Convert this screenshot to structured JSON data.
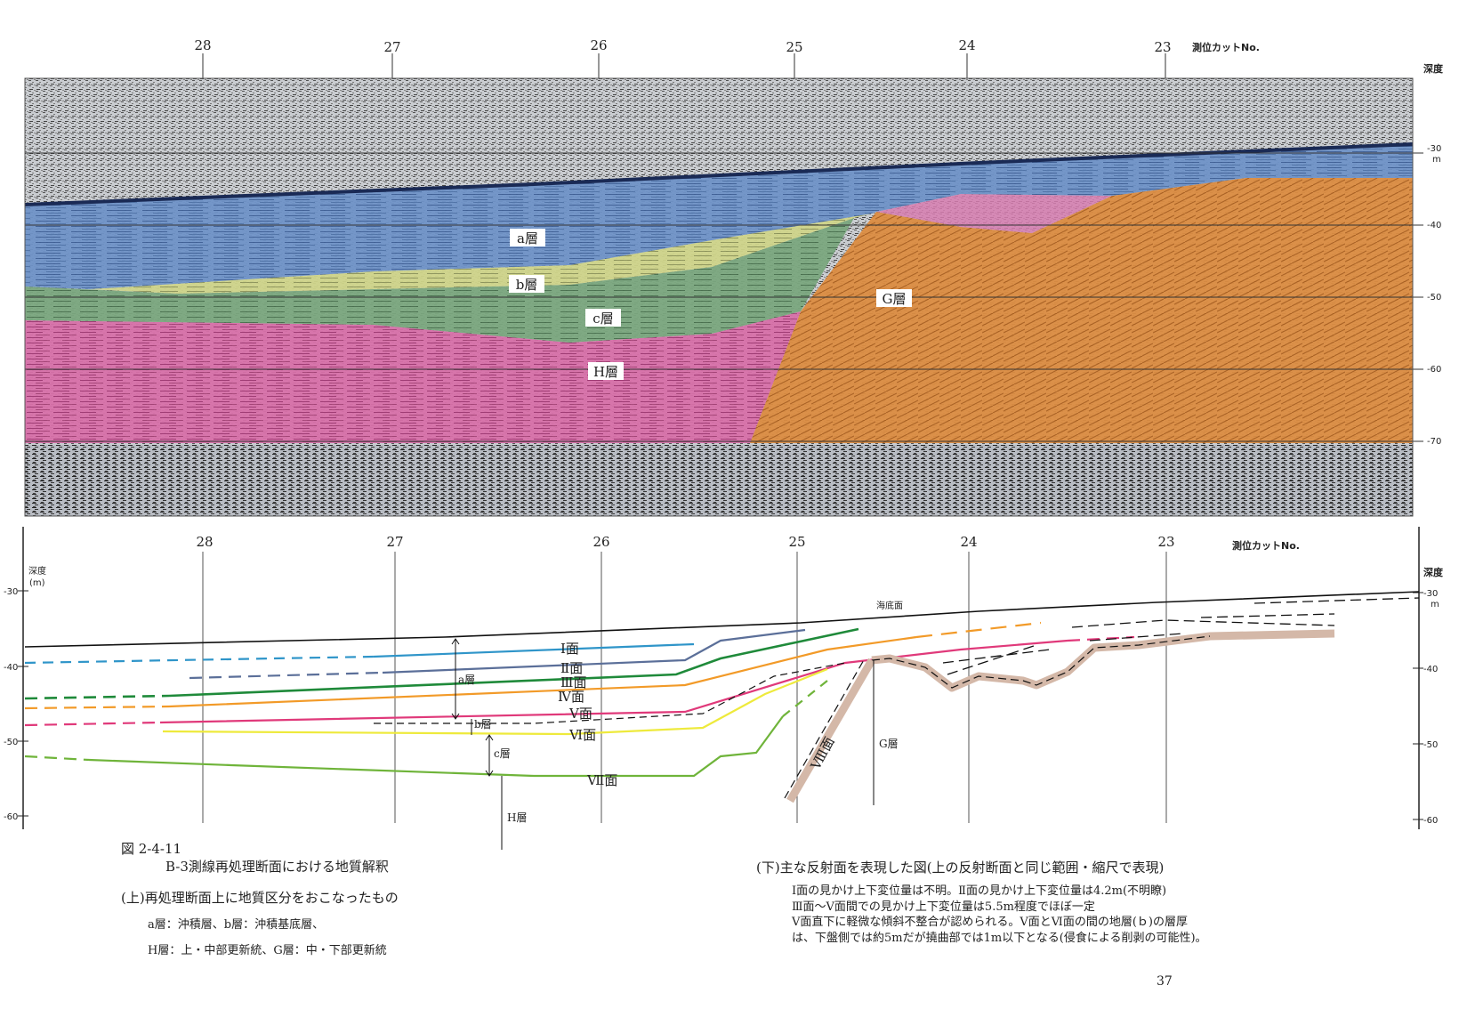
{
  "top_section": {
    "cut_numbers": [
      "28",
      "27",
      "26",
      "25",
      "24",
      "23"
    ],
    "cut_label": "測位カットNo.",
    "depth_label": "深度",
    "depth_ticks": [
      "30",
      "40",
      "50",
      "60",
      "70"
    ],
    "depth_unit": "m",
    "layers": {
      "a": "a層",
      "b": "b層",
      "c": "c層",
      "H": "H層",
      "G": "G層"
    },
    "colors": {
      "a": "#5d86c0",
      "b": "#c8cf7c",
      "c": "#6e9e73",
      "H": "#d6569a",
      "G": "#d9802f",
      "noise": "#9aa0a8"
    }
  },
  "bottom_section": {
    "cut_numbers": [
      "28",
      "27",
      "26",
      "25",
      "24",
      "23"
    ],
    "cut_label": "測位カットNo.",
    "depth_label_left": "深度",
    "depth_unit_left": "(m)",
    "depth_label_right": "深度",
    "depth_unit_right": "m",
    "depth_ticks": [
      "30",
      "40",
      "50",
      "60"
    ],
    "seafloor_label": "海底面",
    "surface_labels": [
      "Ⅰ面",
      "Ⅱ面",
      "Ⅲ面",
      "Ⅳ面",
      "Ⅴ面",
      "Ⅵ面",
      "Ⅶ面",
      "Ⅷ面"
    ],
    "layer_labels": {
      "a": "a層",
      "b": "b層",
      "c": "c層",
      "H": "H層",
      "G": "G層"
    },
    "colors": {
      "I": "#2f95c9",
      "II": "#5b6f99",
      "III": "#1f8a3a",
      "IV": "#f29a28",
      "V": "#e0397a",
      "VI": "#eeea3c",
      "VII": "#6fb43a",
      "fault": "#d4b8a8"
    }
  },
  "caption": {
    "figure_no": "図 2-4-11",
    "title": "B-3測線再処理断面における地質解釈",
    "upper_note": "(上)再処理断面上に地質区分をおこなったもの",
    "legend_line1": "a層：沖積層、b層：沖積基底層、",
    "legend_line2": "H層：上・中部更新統、G層：中・下部更新統",
    "lower_title": "(下)主な反射面を表現した図(上の反射断面と同じ範囲・縮尺で表現)",
    "lower_line1": "Ⅰ面の見かけ上下変位量は不明。Ⅱ面の見かけ上下変位量は4.2m(不明瞭)",
    "lower_line2": "Ⅲ面～Ⅴ面間での見かけ上下変位量は5.5m程度でほぼ一定",
    "lower_line3": "Ⅴ面直下に軽微な傾斜不整合が認められる。Ⅴ面とⅥ面の間の地層(ｂ)の層厚",
    "lower_line4": "は、下盤側では約5mだが撓曲部では1m以下となる(侵食による削剥の可能性)。"
  },
  "page_number": "37"
}
